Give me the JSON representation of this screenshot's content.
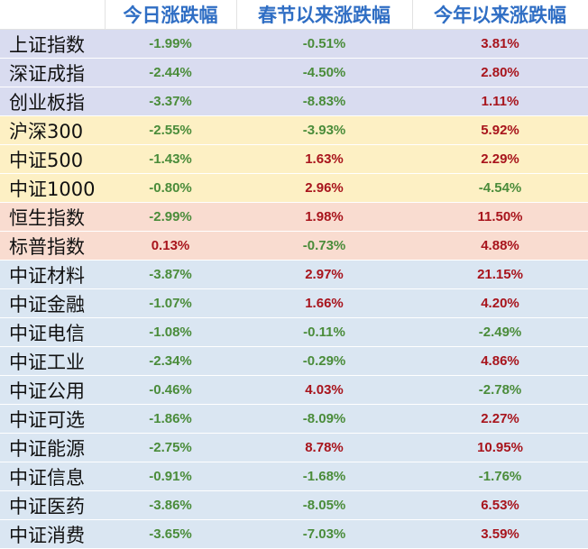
{
  "table": {
    "headers": [
      "",
      "今日涨跌幅",
      "春节以来涨跌幅",
      "今年以来涨跌幅"
    ],
    "colors": {
      "header_text": "#2f6ec4",
      "positive": "#a8141c",
      "negative": "#4a8c3a",
      "group_broad": "#d9dcf0",
      "group_size": "#fdf0c4",
      "group_hk_us": "#f9dcd0",
      "group_sector": "#dae6f2"
    },
    "rows": [
      {
        "group": "broad",
        "name": "上证指数",
        "today": "-1.99%",
        "since_spring": "-0.51%",
        "ytd": "3.81%"
      },
      {
        "group": "broad",
        "name": "深证成指",
        "today": "-2.44%",
        "since_spring": "-4.50%",
        "ytd": "2.80%"
      },
      {
        "group": "broad",
        "name": "创业板指",
        "today": "-3.37%",
        "since_spring": "-8.83%",
        "ytd": "1.11%"
      },
      {
        "group": "size",
        "name": "沪深300",
        "today": "-2.55%",
        "since_spring": "-3.93%",
        "ytd": "5.92%"
      },
      {
        "group": "size",
        "name": "中证500",
        "today": "-1.43%",
        "since_spring": "1.63%",
        "ytd": "2.29%"
      },
      {
        "group": "size",
        "name": "中证1000",
        "today": "-0.80%",
        "since_spring": "2.96%",
        "ytd": "-4.54%"
      },
      {
        "group": "hk",
        "name": "恒生指数",
        "today": "-2.99%",
        "since_spring": "1.98%",
        "ytd": "11.50%"
      },
      {
        "group": "hk",
        "name": "标普指数",
        "today": "0.13%",
        "since_spring": "-0.73%",
        "ytd": "4.88%"
      },
      {
        "group": "sector",
        "name": "中证材料",
        "today": "-3.87%",
        "since_spring": "2.97%",
        "ytd": "21.15%"
      },
      {
        "group": "sector",
        "name": "中证金融",
        "today": "-1.07%",
        "since_spring": "1.66%",
        "ytd": "4.20%"
      },
      {
        "group": "sector",
        "name": "中证电信",
        "today": "-1.08%",
        "since_spring": "-0.11%",
        "ytd": "-2.49%"
      },
      {
        "group": "sector",
        "name": "中证工业",
        "today": "-2.34%",
        "since_spring": "-0.29%",
        "ytd": "4.86%"
      },
      {
        "group": "sector",
        "name": "中证公用",
        "today": "-0.46%",
        "since_spring": "4.03%",
        "ytd": "-2.78%"
      },
      {
        "group": "sector",
        "name": "中证可选",
        "today": "-1.86%",
        "since_spring": "-8.09%",
        "ytd": "2.27%"
      },
      {
        "group": "sector",
        "name": "中证能源",
        "today": "-2.75%",
        "since_spring": "8.78%",
        "ytd": "10.95%"
      },
      {
        "group": "sector",
        "name": "中证信息",
        "today": "-0.91%",
        "since_spring": "-1.68%",
        "ytd": "-1.76%"
      },
      {
        "group": "sector",
        "name": "中证医药",
        "today": "-3.86%",
        "since_spring": "-8.05%",
        "ytd": "6.53%"
      },
      {
        "group": "sector",
        "name": "中证消费",
        "today": "-3.65%",
        "since_spring": "-7.03%",
        "ytd": "3.59%"
      }
    ]
  }
}
